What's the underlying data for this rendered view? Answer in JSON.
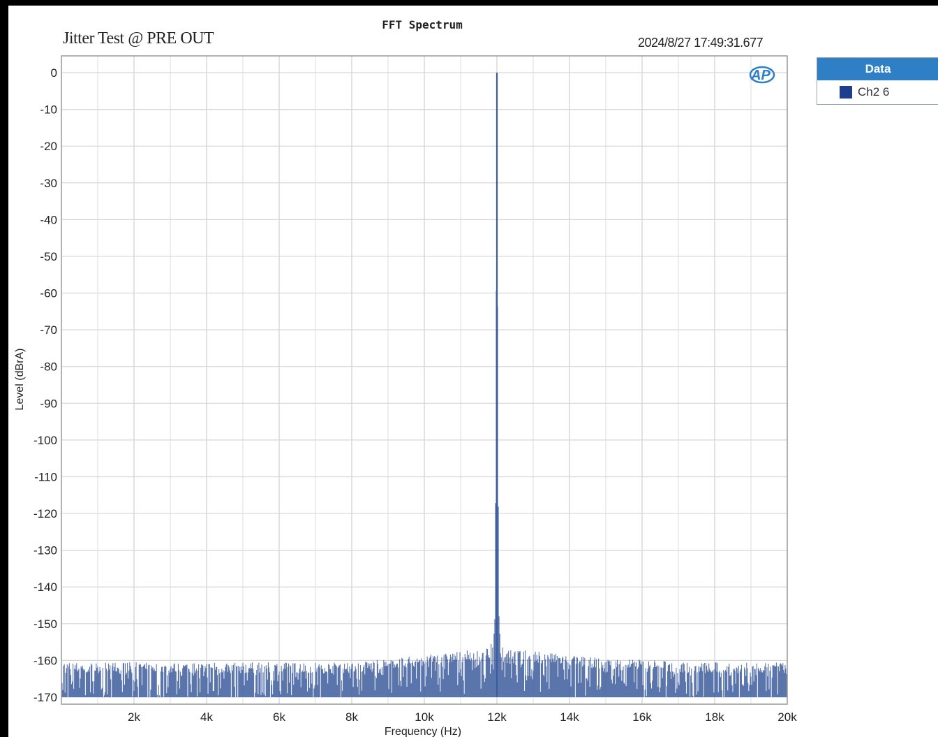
{
  "header": {
    "plot_title": "FFT Spectrum",
    "subtitle": "Jitter Test @ PRE OUT",
    "timestamp": "2024/8/27 17:49:31.677",
    "logo_text": "AP"
  },
  "legend": {
    "header": "Data",
    "items": [
      {
        "label": "Ch2 6",
        "color": "#1e3f8f"
      }
    ]
  },
  "colors": {
    "trace": "#3d5d9e",
    "grid": "#d6d6d6",
    "frame": "#999999",
    "logo": "#2f7fc6"
  },
  "chart_data": {
    "type": "line",
    "title": "FFT Spectrum",
    "xlabel": "Frequency (Hz)",
    "ylabel": "Level (dBrA)",
    "xlim": [
      0,
      20000
    ],
    "ylim": [
      -170,
      0
    ],
    "x_ticks": [
      2000,
      4000,
      6000,
      8000,
      10000,
      12000,
      14000,
      16000,
      18000,
      20000
    ],
    "x_tick_labels": [
      "2k",
      "4k",
      "6k",
      "8k",
      "10k",
      "12k",
      "14k",
      "16k",
      "18k",
      "20k"
    ],
    "y_ticks": [
      0,
      -10,
      -20,
      -30,
      -40,
      -50,
      -60,
      -70,
      -80,
      -90,
      -100,
      -110,
      -120,
      -130,
      -140,
      -150,
      -160,
      -170
    ],
    "y_tick_labels": [
      "0",
      "-10",
      "-20",
      "-30",
      "-40",
      "-50",
      "-60",
      "-70",
      "-80",
      "-90",
      "-100",
      "-110",
      "-120",
      "-130",
      "-140",
      "-150",
      "-160",
      "-170"
    ],
    "grid": true,
    "legend_position": "outside-top-right",
    "series": [
      {
        "name": "Ch2 6",
        "peak": {
          "x": 12000,
          "y": 0
        },
        "x": [
          0,
          1000,
          2000,
          3000,
          4000,
          5000,
          6000,
          7000,
          8000,
          9000,
          10000,
          11000,
          11800,
          11900,
          11950,
          12000,
          12050,
          12100,
          12200,
          13000,
          14000,
          15000,
          16000,
          17000,
          18000,
          19000,
          20000
        ],
        "y": [
          -162,
          -163,
          -164,
          -163,
          -162,
          -163,
          -163,
          -162,
          -162,
          -161,
          -160,
          -159,
          -158,
          -155,
          -147,
          0,
          -147,
          -155,
          -158,
          -159,
          -160,
          -161,
          -161,
          -162,
          -162,
          -163,
          -163
        ]
      }
    ]
  }
}
